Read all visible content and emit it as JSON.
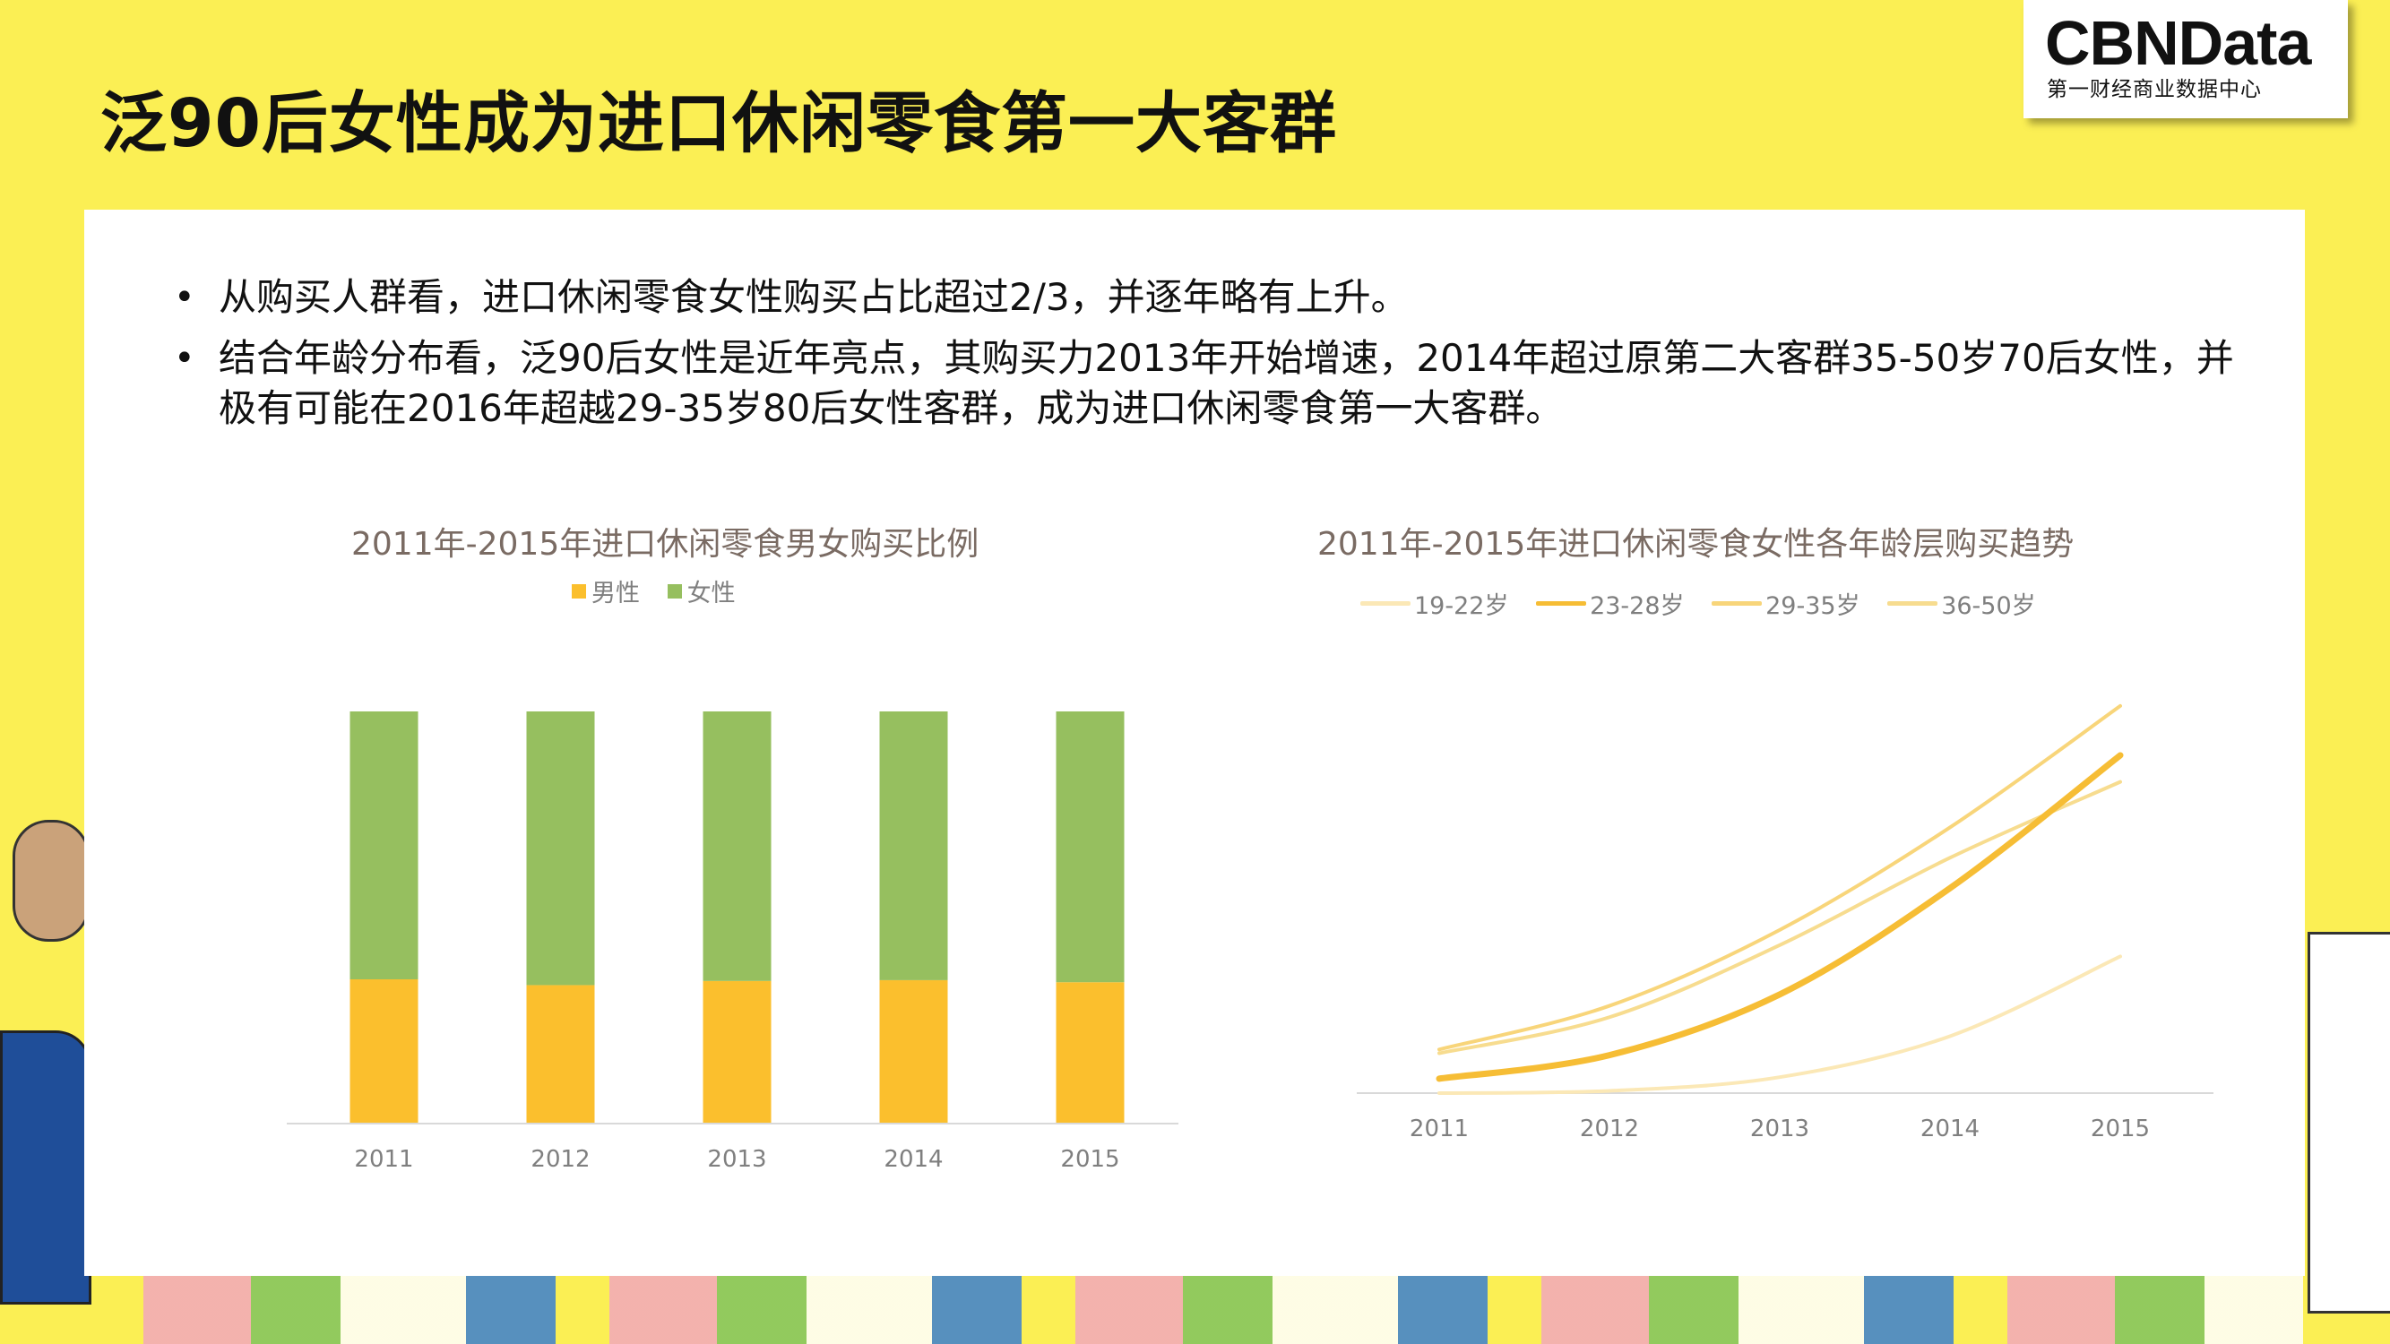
{
  "page": {
    "title": "泛90后女性成为进口休闲零食第一大客群",
    "logo": {
      "main": "CBNData",
      "sub": "第一财经商业数据中心"
    },
    "bullets": [
      "从购买人群看，进口休闲零食女性购买占比超过2/3，并逐年略有上升。",
      "结合年龄分布看，泛90后女性是近年亮点，其购买力2013年开始增速，2014年超过原第二大客群35-50岁70后女性，并极有可能在2016年超越29-35岁80后女性客群，成为进口休闲零食第一大客群。"
    ]
  },
  "colors": {
    "background": "#fbef54",
    "male": "#fbbf2d",
    "female": "#96bf5f",
    "s1922": "#fbe8b6",
    "s2328": "#f6bd35",
    "s2935": "#f8d57a",
    "s3650": "#f7dc8f"
  },
  "chart_data": [
    {
      "type": "bar",
      "stacked": true,
      "normalized": true,
      "title": "2011年-2015年进口休闲零食男女购买比例",
      "categories": [
        "2011",
        "2012",
        "2013",
        "2014",
        "2015"
      ],
      "series": [
        {
          "name": "男性",
          "values": [
            0.35,
            0.336,
            0.346,
            0.348,
            0.343
          ]
        },
        {
          "name": "女性",
          "values": [
            0.65,
            0.664,
            0.654,
            0.652,
            0.657
          ]
        }
      ],
      "ylim": [
        0,
        1
      ],
      "legend": "top",
      "grid": false
    },
    {
      "type": "line",
      "title": "2011年-2015年进口休闲零食女性各年龄层购买趋势",
      "categories": [
        "2011",
        "2012",
        "2013",
        "2014",
        "2015"
      ],
      "series": [
        {
          "name": "19-22岁",
          "values": [
            0,
            0.6,
            4.2,
            15,
            36
          ]
        },
        {
          "name": "23-28岁",
          "values": [
            3.8,
            10,
            26,
            54,
            89
          ]
        },
        {
          "name": "29-35岁",
          "values": [
            11.5,
            23,
            43,
            70,
            102
          ]
        },
        {
          "name": "36-50岁",
          "values": [
            10.5,
            20,
            39,
            62,
            82
          ]
        }
      ],
      "ylim": [
        0,
        110
      ],
      "legend": "top",
      "grid": false
    }
  ]
}
